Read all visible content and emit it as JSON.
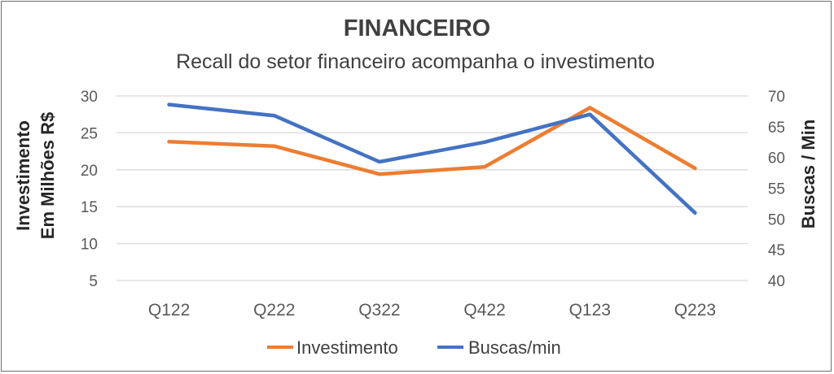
{
  "chart_data": {
    "type": "line",
    "title": "FINANCEIRO",
    "subtitle": "Recall do setor financeiro acompanha o investimento",
    "categories": [
      "Q122",
      "Q222",
      "Q322",
      "Q422",
      "Q123",
      "Q223"
    ],
    "y_left": {
      "label_line1": "Investimento",
      "label_line2": "Em Milhões R$",
      "range": [
        5,
        30
      ],
      "ticks": [
        5,
        10,
        15,
        20,
        25,
        30
      ]
    },
    "y_right": {
      "label": "Buscas / Min",
      "range": [
        40,
        70
      ],
      "ticks": [
        40,
        45,
        50,
        55,
        60,
        65,
        70
      ]
    },
    "series": [
      {
        "name": "Investimento",
        "axis": "left",
        "color": "#ED7D31",
        "values": [
          23.8,
          23.2,
          19.4,
          20.4,
          28.4,
          20.2
        ]
      },
      {
        "name": "Buscas/min",
        "axis": "right",
        "color": "#4472C4",
        "values": [
          68.6,
          66.8,
          59.3,
          62.5,
          67.0,
          51.0
        ]
      }
    ],
    "grid": true,
    "legend_position": "bottom"
  }
}
